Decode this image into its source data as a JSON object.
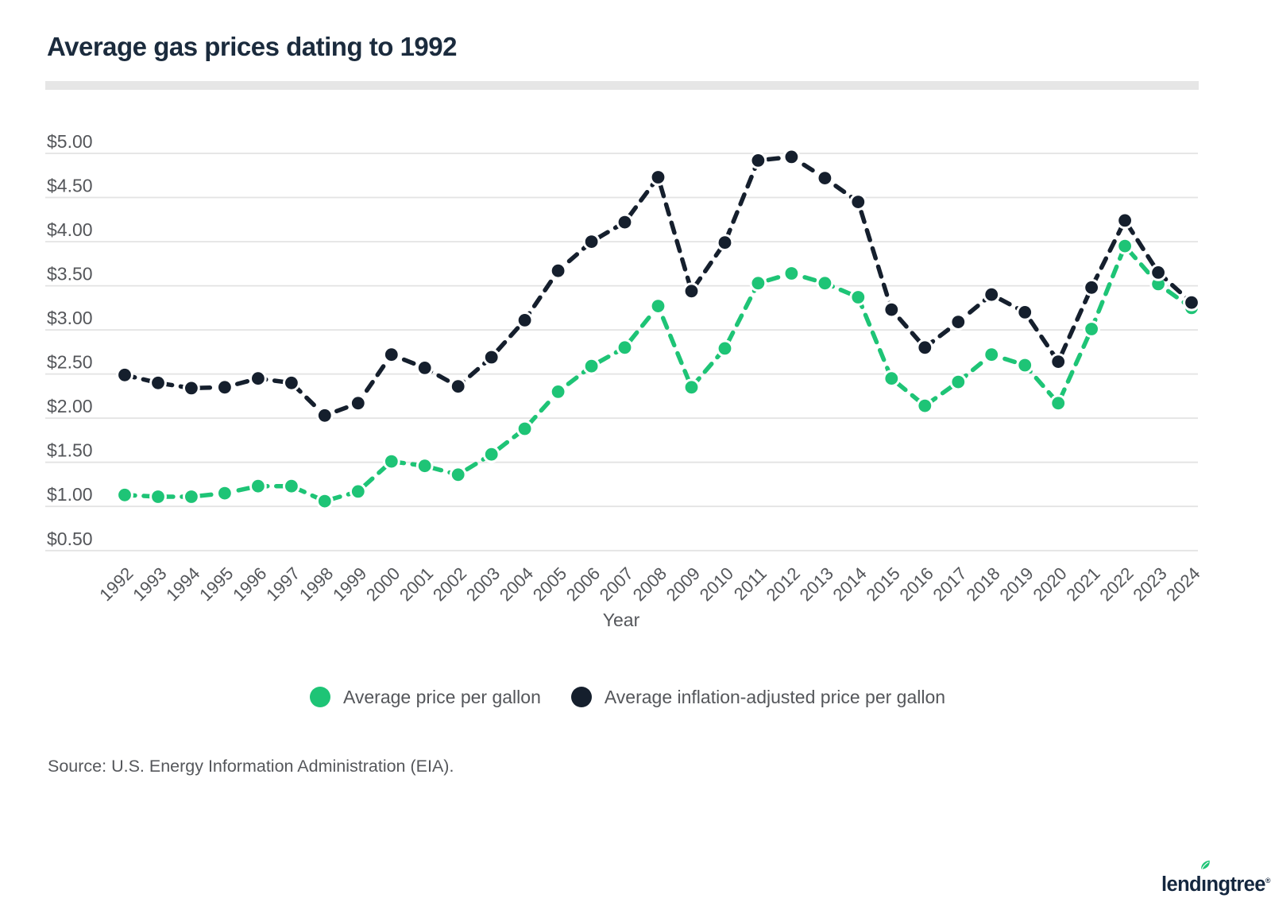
{
  "title": "Average gas prices dating to 1992",
  "source_note": "Source: U.S. Energy Information Administration (EIA).",
  "colors": {
    "title_text": "#1B2B3D",
    "axis_text": "#54565A",
    "gridline": "#E3E3E3",
    "divider": "#E6E6E6",
    "green_series": "#1EC476",
    "navy_series": "#151F2D",
    "background": "#FFFFFF",
    "logo_navy": "#14273F",
    "logo_leaf_green": "#1EC476"
  },
  "legend": [
    {
      "label": "Average price per gallon",
      "color": "#1EC476"
    },
    {
      "label": "Average inflation-adjusted price per gallon",
      "color": "#151F2D"
    }
  ],
  "chart_data": {
    "type": "line",
    "title": "Average gas prices dating to 1992",
    "xlabel": "Year",
    "ylabel": "",
    "ylim": [
      0.5,
      5.0
    ],
    "ytick_step": 0.5,
    "ytick_labels": [
      "$5.00",
      "$4.50",
      "$4.00",
      "$3.50",
      "$3.00",
      "$2.50",
      "$2.00",
      "$1.50",
      "$1.00",
      "$0.50"
    ],
    "grid": true,
    "legend_position": "bottom",
    "marker_style": "filled-circle-white-border",
    "line_style": "dashed",
    "x": [
      1992,
      1993,
      1994,
      1995,
      1996,
      1997,
      1998,
      1999,
      2000,
      2001,
      2002,
      2003,
      2004,
      2005,
      2006,
      2007,
      2008,
      2009,
      2010,
      2011,
      2012,
      2013,
      2014,
      2015,
      2016,
      2017,
      2018,
      2019,
      2020,
      2021,
      2022,
      2023,
      2024
    ],
    "series": [
      {
        "id": "avg-price",
        "name": "Average price per gallon",
        "color": "#1EC476",
        "values": [
          1.13,
          1.11,
          1.11,
          1.15,
          1.23,
          1.23,
          1.06,
          1.17,
          1.51,
          1.46,
          1.36,
          1.59,
          1.88,
          2.3,
          2.59,
          2.8,
          3.27,
          2.35,
          2.79,
          3.53,
          3.64,
          3.53,
          3.37,
          2.45,
          2.14,
          2.41,
          2.72,
          2.6,
          2.17,
          3.01,
          3.95,
          3.52,
          3.25
        ]
      },
      {
        "id": "inflation-adjusted-price",
        "name": "Average inflation-adjusted price per gallon",
        "color": "#151F2D",
        "values": [
          2.49,
          2.4,
          2.34,
          2.35,
          2.45,
          2.4,
          2.03,
          2.17,
          2.72,
          2.57,
          2.36,
          2.69,
          3.11,
          3.67,
          4.0,
          4.22,
          4.73,
          3.44,
          3.99,
          4.92,
          4.96,
          4.72,
          4.45,
          3.23,
          2.8,
          3.09,
          3.4,
          3.2,
          2.64,
          3.48,
          4.24,
          3.65,
          3.31
        ]
      }
    ]
  },
  "logo": {
    "text": "lendingtree",
    "reg_mark": "®"
  }
}
